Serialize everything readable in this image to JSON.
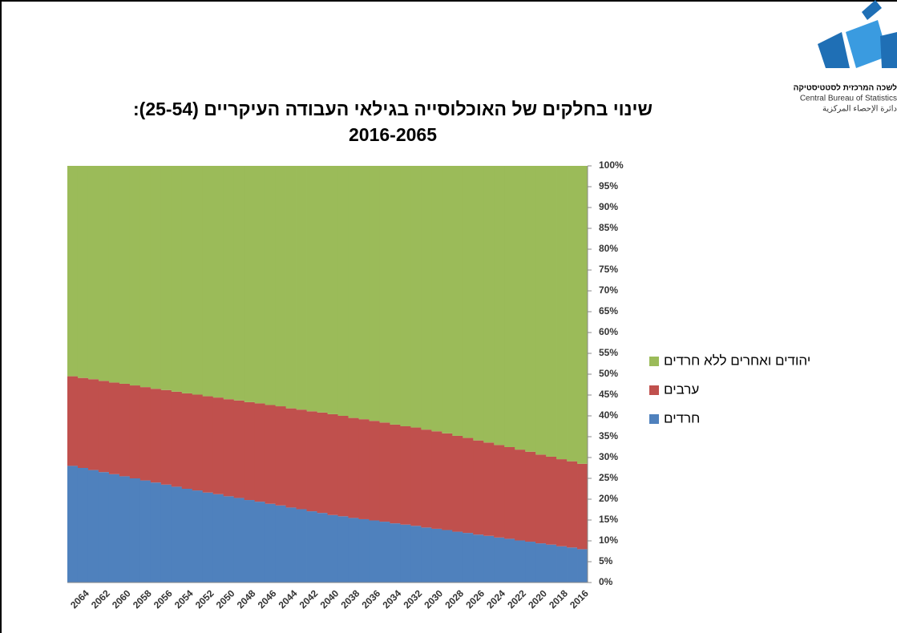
{
  "logo_text": [
    "לשכה המרכזית לסטטיסטיקה",
    "Central Bureau of Statistics",
    "دائرة الإحصاء المركزية"
  ],
  "chart_data": {
    "type": "stacked_bar",
    "title": [
      "שינוי בחלקים של האוכלוסייה בגילאי העבודה העיקריים (25-54):",
      "2016-2065"
    ],
    "categories": [
      null,
      "2064",
      null,
      "2062",
      null,
      "2060",
      null,
      "2058",
      null,
      "2056",
      null,
      "2054",
      null,
      "2052",
      null,
      "2050",
      null,
      "2048",
      null,
      "2046",
      null,
      "2044",
      null,
      "2042",
      null,
      "2040",
      null,
      "2038",
      null,
      "2036",
      null,
      "2034",
      null,
      "2032",
      null,
      "2030",
      null,
      "2028",
      null,
      "2026",
      null,
      "2024",
      null,
      "2022",
      null,
      "2020",
      null,
      "2018",
      null,
      "2016"
    ],
    "series": [
      {
        "name": "חרדים",
        "color": "#4f81bd",
        "values": [
          28.0,
          27.5,
          27.0,
          26.5,
          26.0,
          25.5,
          25.0,
          24.5,
          24.0,
          23.5,
          23.0,
          22.5,
          22.1,
          21.6,
          21.2,
          20.7,
          20.3,
          19.8,
          19.4,
          18.9,
          18.5,
          18.0,
          17.6,
          17.1,
          16.7,
          16.2,
          15.9,
          15.5,
          15.2,
          14.9,
          14.6,
          14.2,
          13.9,
          13.6,
          13.2,
          12.9,
          12.6,
          12.2,
          11.9,
          11.5,
          11.2,
          10.8,
          10.5,
          10.1,
          9.8,
          9.4,
          9.1,
          8.7,
          8.4,
          8.0
        ]
      },
      {
        "name": "ערבים",
        "color": "#c0504d",
        "values": [
          21.5,
          21.6,
          21.8,
          21.9,
          22.0,
          22.2,
          22.3,
          22.4,
          22.5,
          22.7,
          22.8,
          22.9,
          23.0,
          23.1,
          23.2,
          23.3,
          23.4,
          23.5,
          23.6,
          23.7,
          23.8,
          23.8,
          23.9,
          24.0,
          24.1,
          24.2,
          24.1,
          24.0,
          24.0,
          23.9,
          23.8,
          23.7,
          23.6,
          23.6,
          23.5,
          23.4,
          23.2,
          23.0,
          22.8,
          22.6,
          22.4,
          22.2,
          22.0,
          21.8,
          21.6,
          21.3,
          21.1,
          20.9,
          20.7,
          20.5
        ]
      },
      {
        "name": "יהודים ואחרים ללא חרדים",
        "color": "#9bbb59",
        "values": [
          50.5,
          50.9,
          51.2,
          51.6,
          52.0,
          52.3,
          52.7,
          53.1,
          53.5,
          53.8,
          54.2,
          54.6,
          54.9,
          55.3,
          55.6,
          56.0,
          56.3,
          56.7,
          57.0,
          57.4,
          57.7,
          58.2,
          58.5,
          58.9,
          59.2,
          59.6,
          60.0,
          60.5,
          60.8,
          61.2,
          61.6,
          62.1,
          62.5,
          62.8,
          63.3,
          63.7,
          64.2,
          64.8,
          65.3,
          65.9,
          66.4,
          67.0,
          67.5,
          68.1,
          68.6,
          69.3,
          69.8,
          70.4,
          70.9,
          71.5
        ]
      }
    ],
    "ylim": [
      0,
      100
    ],
    "yticks": [
      {
        "value": 0,
        "label": "0%"
      },
      {
        "value": 5,
        "label": "5%"
      },
      {
        "value": 10,
        "label": "10%"
      },
      {
        "value": 15,
        "label": "15%"
      },
      {
        "value": 20,
        "label": "20%"
      },
      {
        "value": 25,
        "label": "25%"
      },
      {
        "value": 30,
        "label": "30%"
      },
      {
        "value": 35,
        "label": "35%"
      },
      {
        "value": 40,
        "label": "40%"
      },
      {
        "value": 45,
        "label": "45%"
      },
      {
        "value": 50,
        "label": "50%"
      },
      {
        "value": 55,
        "label": "55%"
      },
      {
        "value": 60,
        "label": "60%"
      },
      {
        "value": 65,
        "label": "65%"
      },
      {
        "value": 70,
        "label": "70%"
      },
      {
        "value": 75,
        "label": "75%"
      },
      {
        "value": 80,
        "label": "80%"
      },
      {
        "value": 85,
        "label": "85%"
      },
      {
        "value": 90,
        "label": "90%"
      },
      {
        "value": 95,
        "label": "95%"
      },
      {
        "value": 100,
        "label": "100%"
      }
    ],
    "y_axis_side": "right",
    "legend": "right"
  }
}
